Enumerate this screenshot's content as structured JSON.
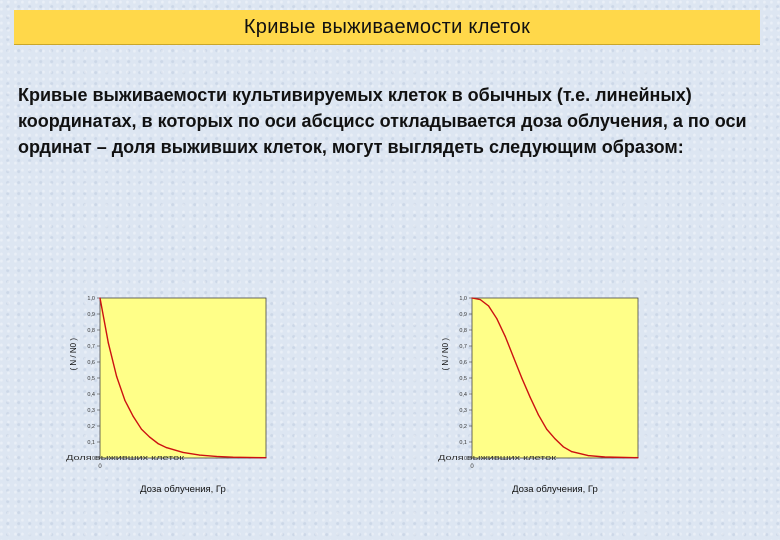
{
  "slide": {
    "title": "Кривые выживаемости клеток",
    "intro": "Кривые выживаемости культивируемых клеток в обычных (т.е. линейных) координатах, в которых по оси абсцисс откладывается доза облучения, а по оси ординат – доля выживших клеток, могут выглядеть следующим образом:"
  },
  "colors": {
    "title_bg": "#ffd84a",
    "plot_bg": "#ffff88",
    "curve": "#cc1111"
  },
  "chart_data": [
    {
      "type": "line",
      "xlabel": "Доза облучения, Гр",
      "ylabel": "( N / N0 )",
      "ylabel_prefix": "Доля выживших клеток",
      "ylim": [
        0,
        1
      ],
      "yticks": [
        "0",
        "0,1",
        "0,2",
        "0,3",
        "0,4",
        "0,5",
        "0,6",
        "0,7",
        "0,8",
        "0,9",
        "1,0"
      ],
      "xtick": "0",
      "grid": false,
      "series": [
        {
          "x": [
            0,
            0.5,
            1,
            1.5,
            2,
            2.5,
            3,
            3.5,
            4,
            5,
            6,
            7,
            8,
            10
          ],
          "y": [
            1.0,
            0.72,
            0.51,
            0.36,
            0.26,
            0.18,
            0.13,
            0.09,
            0.065,
            0.035,
            0.018,
            0.01,
            0.005,
            0.002
          ]
        }
      ]
    },
    {
      "type": "line",
      "xlabel": "Доза облучения, Гр",
      "ylabel": "( N / N0 )",
      "ylabel_prefix": "Доля выживших клеток",
      "ylim": [
        0,
        1
      ],
      "yticks": [
        "0",
        "0,1",
        "0,2",
        "0,3",
        "0,4",
        "0,5",
        "0,6",
        "0,7",
        "0,8",
        "0,9",
        "1,0"
      ],
      "xtick": "0",
      "grid": false,
      "series": [
        {
          "x": [
            0,
            0.5,
            1,
            1.5,
            2,
            2.5,
            3,
            3.5,
            4,
            4.5,
            5,
            5.5,
            6,
            7,
            8,
            10
          ],
          "y": [
            1.0,
            0.99,
            0.95,
            0.87,
            0.76,
            0.63,
            0.5,
            0.38,
            0.27,
            0.18,
            0.12,
            0.07,
            0.04,
            0.015,
            0.006,
            0.002
          ]
        }
      ]
    }
  ]
}
